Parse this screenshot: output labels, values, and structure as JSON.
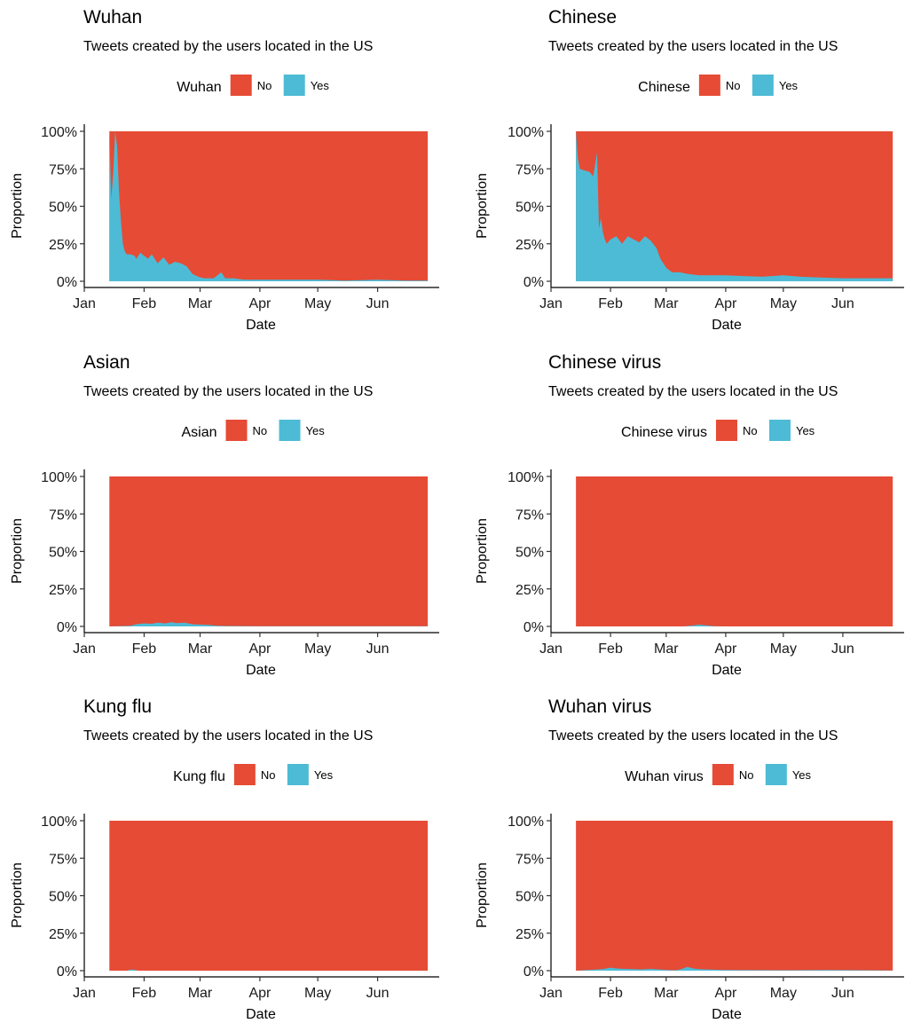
{
  "colors": {
    "no": "#E64B35",
    "yes": "#4DBBD5"
  },
  "chart_data": [
    {
      "type": "area",
      "title": "Wuhan",
      "subtitle": "Tweets created by the users located in the US",
      "legend_title": "Wuhan",
      "legend_position": "top",
      "xlabel": "Date",
      "ylabel": "Proportion",
      "x_ticks": [
        "Jan",
        "Feb",
        "Mar",
        "Apr",
        "May",
        "Jun"
      ],
      "y_ticks": [
        "0%",
        "25%",
        "50%",
        "75%",
        "100%"
      ],
      "ylim": [
        0,
        1
      ],
      "stacked_fill": true,
      "series": [
        {
          "name": "No",
          "color": "#E64B35"
        },
        {
          "name": "Yes",
          "color": "#4DBBD5",
          "x": [
            "2020-01-14",
            "2020-01-15",
            "2020-01-16",
            "2020-01-17",
            "2020-01-18",
            "2020-01-19",
            "2020-01-20",
            "2020-01-21",
            "2020-01-22",
            "2020-01-23",
            "2020-01-25",
            "2020-01-27",
            "2020-01-28",
            "2020-01-30",
            "2020-02-01",
            "2020-02-03",
            "2020-02-05",
            "2020-02-08",
            "2020-02-11",
            "2020-02-14",
            "2020-02-17",
            "2020-02-20",
            "2020-02-23",
            "2020-02-26",
            "2020-02-29",
            "2020-03-03",
            "2020-03-08",
            "2020-03-12",
            "2020-03-14",
            "2020-03-18",
            "2020-03-24",
            "2020-04-01",
            "2020-04-15",
            "2020-05-01",
            "2020-05-15",
            "2020-06-01",
            "2020-06-15",
            "2020-06-27"
          ],
          "values": [
            0.98,
            0.55,
            0.72,
            1.0,
            0.9,
            0.6,
            0.4,
            0.25,
            0.2,
            0.18,
            0.18,
            0.17,
            0.15,
            0.19,
            0.17,
            0.15,
            0.18,
            0.12,
            0.16,
            0.11,
            0.13,
            0.12,
            0.1,
            0.05,
            0.03,
            0.02,
            0.02,
            0.06,
            0.02,
            0.02,
            0.01,
            0.01,
            0.01,
            0.01,
            0.005,
            0.01,
            0.005,
            0.005
          ]
        }
      ]
    },
    {
      "type": "area",
      "title": "Chinese",
      "subtitle": "Tweets created by the users located in the US",
      "legend_title": "Chinese",
      "legend_position": "top",
      "xlabel": "Date",
      "ylabel": "Proportion",
      "x_ticks": [
        "Jan",
        "Feb",
        "Mar",
        "Apr",
        "May",
        "Jun"
      ],
      "y_ticks": [
        "0%",
        "25%",
        "50%",
        "75%",
        "100%"
      ],
      "ylim": [
        0,
        1
      ],
      "stacked_fill": true,
      "series": [
        {
          "name": "No",
          "color": "#E64B35"
        },
        {
          "name": "Yes",
          "color": "#4DBBD5",
          "x": [
            "2020-01-14",
            "2020-01-15",
            "2020-01-16",
            "2020-01-18",
            "2020-01-21",
            "2020-01-23",
            "2020-01-24",
            "2020-01-25",
            "2020-01-26",
            "2020-01-27",
            "2020-01-28",
            "2020-01-29",
            "2020-01-30",
            "2020-02-01",
            "2020-02-04",
            "2020-02-07",
            "2020-02-10",
            "2020-02-13",
            "2020-02-16",
            "2020-02-19",
            "2020-02-22",
            "2020-02-25",
            "2020-02-27",
            "2020-03-01",
            "2020-03-04",
            "2020-03-08",
            "2020-03-12",
            "2020-03-18",
            "2020-03-25",
            "2020-04-01",
            "2020-04-10",
            "2020-04-20",
            "2020-05-01",
            "2020-05-10",
            "2020-05-20",
            "2020-06-01",
            "2020-06-10",
            "2020-06-20",
            "2020-06-27"
          ],
          "values": [
            1.0,
            0.82,
            0.75,
            0.74,
            0.73,
            0.7,
            0.78,
            0.86,
            0.35,
            0.42,
            0.33,
            0.28,
            0.25,
            0.28,
            0.3,
            0.25,
            0.3,
            0.28,
            0.26,
            0.3,
            0.27,
            0.22,
            0.15,
            0.09,
            0.06,
            0.06,
            0.05,
            0.04,
            0.04,
            0.04,
            0.035,
            0.03,
            0.04,
            0.03,
            0.025,
            0.02,
            0.02,
            0.02,
            0.02
          ]
        }
      ]
    },
    {
      "type": "area",
      "title": "Asian",
      "subtitle": "Tweets created by the users located in the US",
      "legend_title": "Asian",
      "legend_position": "top",
      "xlabel": "Date",
      "ylabel": "Proportion",
      "x_ticks": [
        "Jan",
        "Feb",
        "Mar",
        "Apr",
        "May",
        "Jun"
      ],
      "y_ticks": [
        "0%",
        "25%",
        "50%",
        "75%",
        "100%"
      ],
      "ylim": [
        0,
        1
      ],
      "stacked_fill": true,
      "series": [
        {
          "name": "No",
          "color": "#E64B35"
        },
        {
          "name": "Yes",
          "color": "#4DBBD5",
          "x": [
            "2020-01-14",
            "2020-01-25",
            "2020-01-28",
            "2020-02-01",
            "2020-02-05",
            "2020-02-08",
            "2020-02-12",
            "2020-02-15",
            "2020-02-18",
            "2020-02-22",
            "2020-02-26",
            "2020-03-01",
            "2020-03-05",
            "2020-03-10",
            "2020-03-15",
            "2020-04-01",
            "2020-05-01",
            "2020-06-01",
            "2020-06-27"
          ],
          "values": [
            0.0,
            0.005,
            0.015,
            0.02,
            0.018,
            0.025,
            0.02,
            0.028,
            0.022,
            0.025,
            0.015,
            0.012,
            0.01,
            0.005,
            0.003,
            0.002,
            0.002,
            0.001,
            0.001
          ]
        }
      ]
    },
    {
      "type": "area",
      "title": "Chinese virus",
      "subtitle": "Tweets created by the users located in the US",
      "legend_title": "Chinese virus",
      "legend_position": "top",
      "xlabel": "Date",
      "ylabel": "Proportion",
      "x_ticks": [
        "Jan",
        "Feb",
        "Mar",
        "Apr",
        "May",
        "Jun"
      ],
      "y_ticks": [
        "0%",
        "25%",
        "50%",
        "75%",
        "100%"
      ],
      "ylim": [
        0,
        1
      ],
      "stacked_fill": true,
      "series": [
        {
          "name": "No",
          "color": "#E64B35"
        },
        {
          "name": "Yes",
          "color": "#4DBBD5",
          "x": [
            "2020-01-14",
            "2020-03-10",
            "2020-03-16",
            "2020-03-18",
            "2020-03-21",
            "2020-03-26",
            "2020-04-01",
            "2020-06-27"
          ],
          "values": [
            0.0,
            0.0,
            0.008,
            0.012,
            0.008,
            0.002,
            0.0,
            0.0
          ]
        }
      ]
    },
    {
      "type": "area",
      "title": "Kung flu",
      "subtitle": "Tweets created by the users located in the US",
      "legend_title": "Kung flu",
      "legend_position": "top",
      "xlabel": "Date",
      "ylabel": "Proportion",
      "x_ticks": [
        "Jan",
        "Feb",
        "Mar",
        "Apr",
        "May",
        "Jun"
      ],
      "y_ticks": [
        "0%",
        "25%",
        "50%",
        "75%",
        "100%"
      ],
      "ylim": [
        0,
        1
      ],
      "stacked_fill": true,
      "series": [
        {
          "name": "No",
          "color": "#E64B35"
        },
        {
          "name": "Yes",
          "color": "#4DBBD5",
          "x": [
            "2020-01-14",
            "2020-01-23",
            "2020-01-25",
            "2020-01-27",
            "2020-01-29",
            "2020-06-27"
          ],
          "values": [
            0.0,
            0.0,
            0.007,
            0.006,
            0.0,
            0.0
          ]
        }
      ]
    },
    {
      "type": "area",
      "title": "Wuhan virus",
      "subtitle": "Tweets created by the users located in the US",
      "legend_title": "Wuhan virus",
      "legend_position": "top",
      "xlabel": "Date",
      "ylabel": "Proportion",
      "x_ticks": [
        "Jan",
        "Feb",
        "Mar",
        "Apr",
        "May",
        "Jun"
      ],
      "y_ticks": [
        "0%",
        "25%",
        "50%",
        "75%",
        "100%"
      ],
      "ylim": [
        0,
        1
      ],
      "stacked_fill": true,
      "series": [
        {
          "name": "No",
          "color": "#E64B35"
        },
        {
          "name": "Yes",
          "color": "#4DBBD5",
          "x": [
            "2020-01-14",
            "2020-01-28",
            "2020-02-01",
            "2020-02-04",
            "2020-02-08",
            "2020-02-13",
            "2020-02-17",
            "2020-02-22",
            "2020-02-26",
            "2020-03-02",
            "2020-03-06",
            "2020-03-09",
            "2020-03-12",
            "2020-03-15",
            "2020-03-18",
            "2020-03-22",
            "2020-04-01",
            "2020-05-01",
            "2020-05-25",
            "2020-06-27"
          ],
          "values": [
            0.0,
            0.01,
            0.02,
            0.015,
            0.012,
            0.01,
            0.008,
            0.012,
            0.008,
            0.005,
            0.003,
            0.01,
            0.025,
            0.015,
            0.01,
            0.008,
            0.004,
            0.003,
            0.004,
            0.002
          ]
        }
      ]
    }
  ]
}
